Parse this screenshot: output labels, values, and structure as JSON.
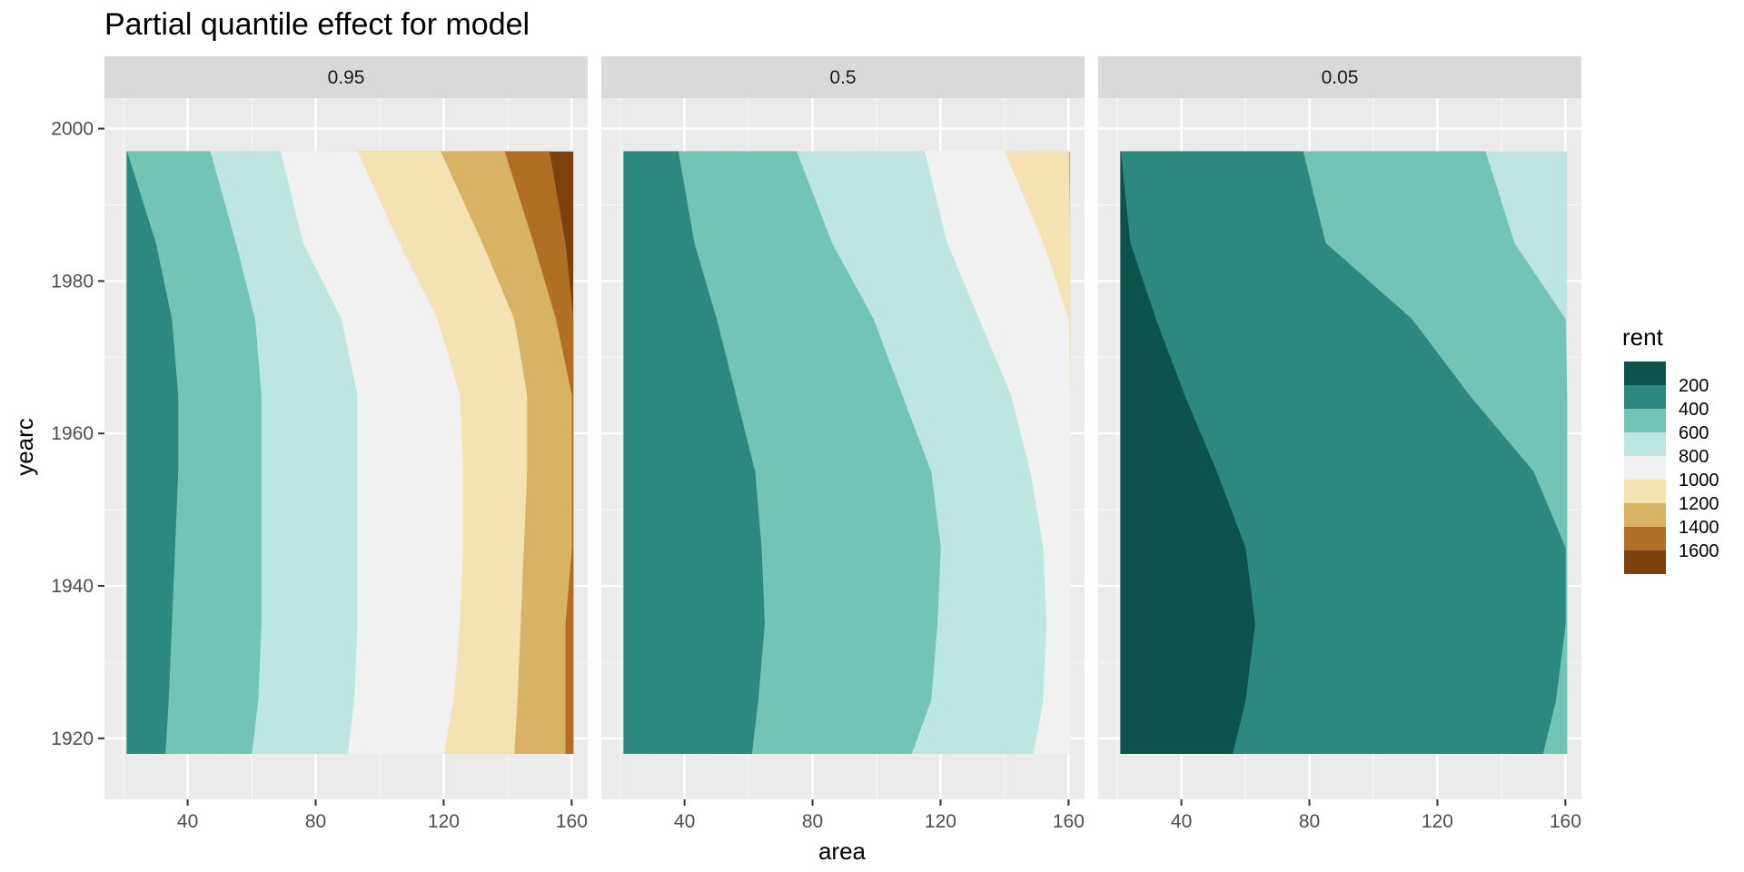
{
  "chart_data": {
    "type": "heatmap",
    "title": "Partial quantile effect for model",
    "xlabel": "area",
    "ylabel": "yearc",
    "xlim": [
      14,
      165
    ],
    "ylim": [
      1912,
      2004
    ],
    "data_x_range": [
      21,
      160
    ],
    "data_y_range": [
      1918,
      1997
    ],
    "xticks": [
      40,
      80,
      120,
      160
    ],
    "yticks": [
      1920,
      1940,
      1960,
      1980,
      2000
    ],
    "facets": [
      "0.95",
      "0.5",
      "0.05"
    ],
    "legend": {
      "title": "rent",
      "position": "right",
      "bins": [
        {
          "label": "200",
          "color": "#0b534b"
        },
        {
          "label": "400",
          "color": "#2d897d"
        },
        {
          "label": "600",
          "color": "#72c4b4"
        },
        {
          "label": "800",
          "color": "#bde6e0"
        },
        {
          "label": "1000",
          "color": "#f1f1f1"
        },
        {
          "label": "1200",
          "color": "#f4e2b2"
        },
        {
          "label": "1400",
          "color": "#d8b365"
        },
        {
          "label": "1600",
          "color": "#b06f24"
        },
        {
          "label": "",
          "color": "#7b420e"
        }
      ]
    },
    "boundary_years": [
      1918,
      1925,
      1935,
      1945,
      1955,
      1965,
      1975,
      1985,
      1997
    ],
    "panels": [
      {
        "quantile": "0.95",
        "boundaries": [
          {
            "upper_bin": 2,
            "area": [
              33,
              34,
              35,
              36,
              37,
              37,
              35,
              30,
              21
            ]
          },
          {
            "upper_bin": 3,
            "area": [
              60,
              62,
              63,
              63,
              63,
              63,
              61,
              55,
              47
            ]
          },
          {
            "upper_bin": 4,
            "area": [
              90,
              92,
              93,
              93,
              93,
              93,
              88,
              76,
              69
            ]
          },
          {
            "upper_bin": 5,
            "area": [
              120,
              123,
              125,
              126,
              126,
              125,
              118,
              106,
              93
            ]
          },
          {
            "upper_bin": 6,
            "area": [
              142,
              143,
              144,
              145,
              146,
              146,
              142,
              132,
              119
            ]
          },
          {
            "upper_bin": 7,
            "area": [
              158,
              158,
              158,
              160,
              160,
              160,
              155,
              148,
              139
            ]
          },
          {
            "upper_bin": 8,
            "area": [
              160.5,
              160.5,
              160.5,
              160.5,
              160.5,
              160.5,
              160.5,
              158,
              153
            ]
          }
        ]
      },
      {
        "quantile": "0.5",
        "boundaries": [
          {
            "upper_bin": 2,
            "area": [
              61,
              63,
              65,
              64,
              62,
              56,
              50,
              43,
              38
            ]
          },
          {
            "upper_bin": 3,
            "area": [
              111,
              117,
              119,
              120,
              117,
              108,
              99,
              86,
              75
            ]
          },
          {
            "upper_bin": 4,
            "area": [
              149,
              152,
              153,
              152,
              148,
              142,
              132,
              122,
              115
            ]
          },
          {
            "upper_bin": 5,
            "area": [
              160.5,
              160.5,
              160.5,
              160.5,
              160.5,
              160.5,
              160,
              152,
              140
            ]
          },
          {
            "upper_bin": 6,
            "area": [
              160.5,
              160.5,
              160.5,
              160.5,
              160.5,
              160.5,
              160.5,
              160.5,
              160
            ]
          }
        ]
      },
      {
        "quantile": "0.05",
        "boundaries": [
          {
            "upper_bin": 1,
            "area": [
              56,
              60,
              63,
              60,
              51,
              41,
              32,
              24,
              21
            ]
          },
          {
            "upper_bin": 2,
            "area": [
              153,
              157,
              160,
              160,
              150,
              130,
              112,
              85,
              78
            ]
          },
          {
            "upper_bin": 3,
            "area": [
              160.5,
              160.5,
              160.5,
              160.5,
              160.5,
              160.5,
              160,
              144,
              135
            ]
          }
        ]
      }
    ]
  }
}
